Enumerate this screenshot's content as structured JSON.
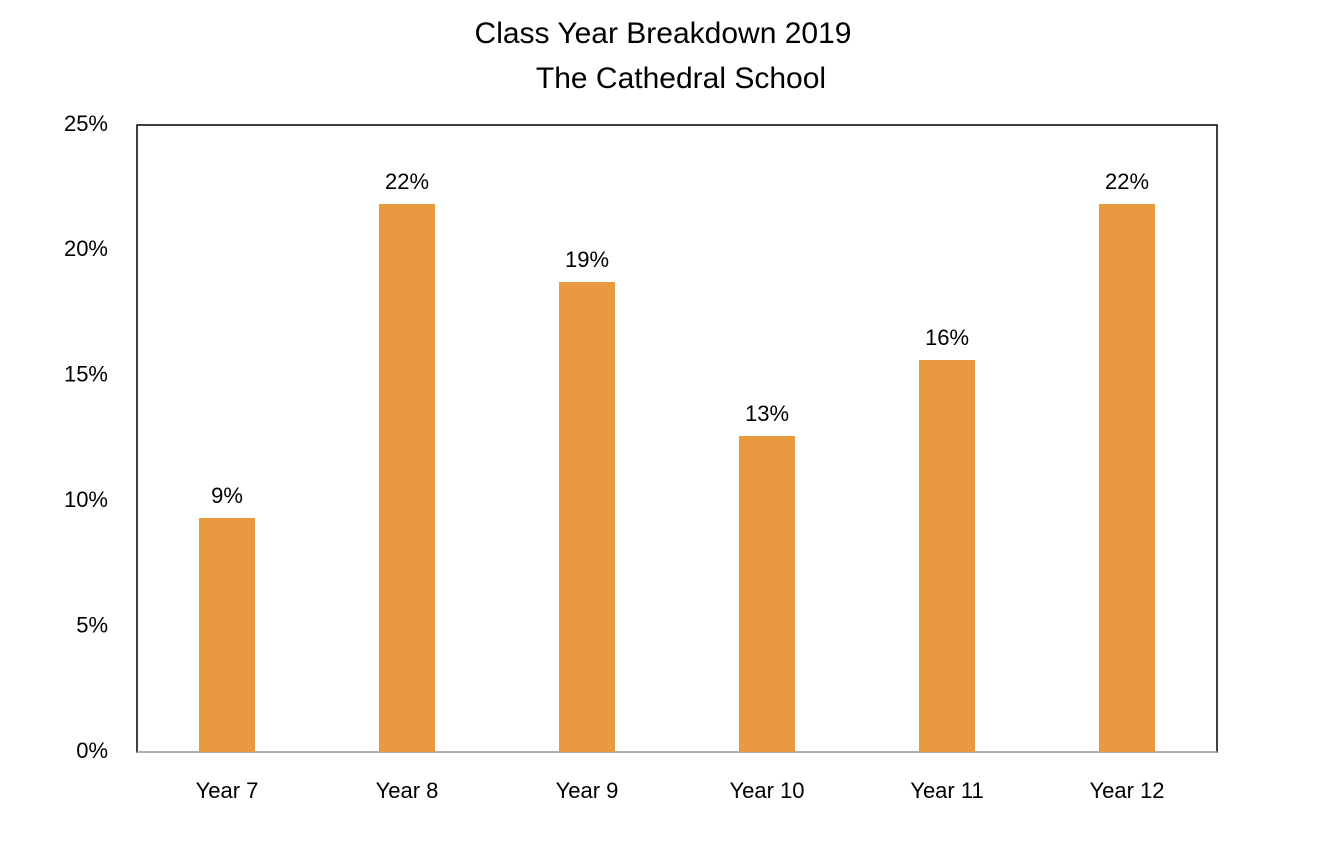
{
  "chart_data": {
    "type": "bar",
    "title": "Class Year Breakdown 2019",
    "subtitle": "The Cathedral School",
    "categories": [
      "Year 7",
      "Year 8",
      "Year 9",
      "Year 10",
      "Year 11",
      "Year 12"
    ],
    "values": [
      9.33,
      21.85,
      18.74,
      12.6,
      15.63,
      21.85
    ],
    "value_labels": [
      "9%",
      "22%",
      "19%",
      "13%",
      "16%",
      "22%"
    ],
    "color": "#e99a40",
    "ylim": [
      0,
      25
    ],
    "yticks": [
      {
        "value": 0,
        "label": "0%"
      },
      {
        "value": 5,
        "label": "5%"
      },
      {
        "value": 10,
        "label": "10%"
      },
      {
        "value": 15,
        "label": "15%"
      },
      {
        "value": 20,
        "label": "20%"
      },
      {
        "value": 25,
        "label": "25%"
      }
    ],
    "grid": false
  }
}
